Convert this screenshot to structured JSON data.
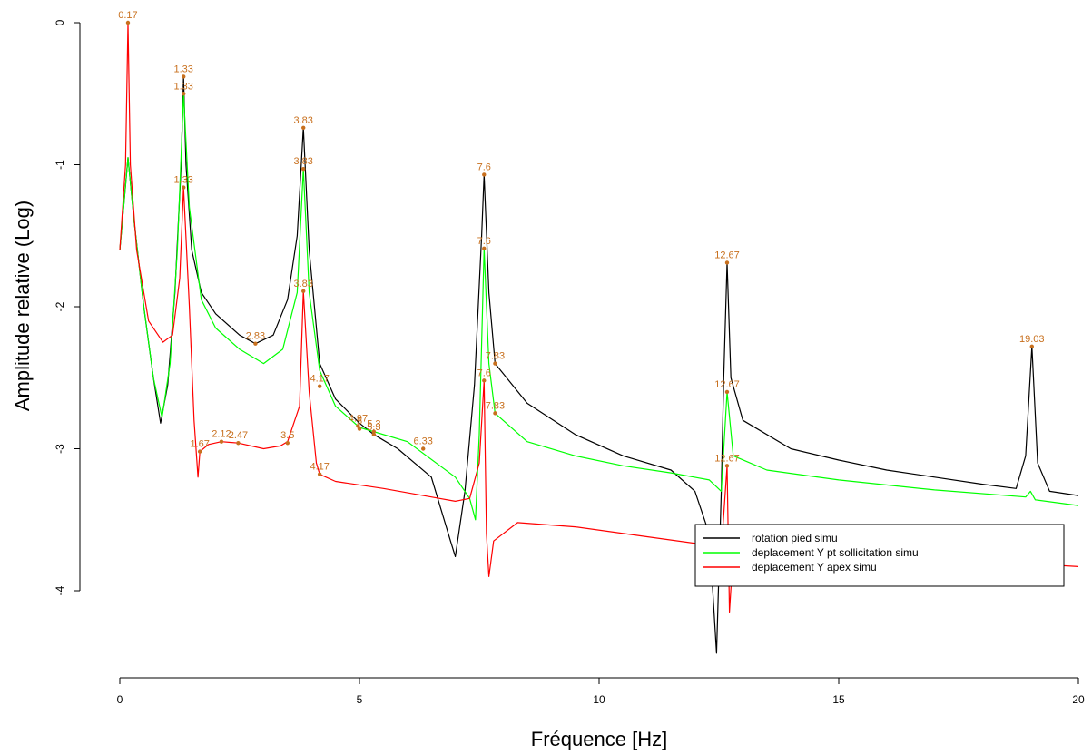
{
  "chart_data": {
    "type": "line",
    "xlabel": "Fréquence [Hz]",
    "ylabel": "Amplitude relative (Log)",
    "xlim": [
      0,
      20
    ],
    "ylim": [
      -4.5,
      0
    ],
    "x_ticks": [
      0,
      5,
      10,
      15,
      20
    ],
    "y_ticks": [
      0,
      -1,
      -2,
      -3,
      -4
    ],
    "legend": {
      "placement": "bottom-right"
    },
    "series": [
      {
        "name": "rotation pied simu",
        "color": "#000000",
        "points": [
          [
            0,
            -1.6
          ],
          [
            0.17,
            -0.95
          ],
          [
            0.3,
            -1.4
          ],
          [
            0.5,
            -2.0
          ],
          [
            0.7,
            -2.5
          ],
          [
            0.85,
            -2.82
          ],
          [
            1.0,
            -2.55
          ],
          [
            1.15,
            -1.9
          ],
          [
            1.28,
            -1.0
          ],
          [
            1.33,
            -0.38
          ],
          [
            1.38,
            -1.0
          ],
          [
            1.5,
            -1.6
          ],
          [
            1.7,
            -1.9
          ],
          [
            2.0,
            -2.05
          ],
          [
            2.5,
            -2.2
          ],
          [
            2.83,
            -2.26
          ],
          [
            3.2,
            -2.2
          ],
          [
            3.5,
            -1.95
          ],
          [
            3.7,
            -1.5
          ],
          [
            3.83,
            -0.74
          ],
          [
            3.95,
            -1.6
          ],
          [
            4.17,
            -2.4
          ],
          [
            4.5,
            -2.65
          ],
          [
            5.0,
            -2.82
          ],
          [
            5.3,
            -2.9
          ],
          [
            5.8,
            -3.0
          ],
          [
            6.5,
            -3.2
          ],
          [
            6.9,
            -3.65
          ],
          [
            7.0,
            -3.76
          ],
          [
            7.2,
            -3.3
          ],
          [
            7.4,
            -2.55
          ],
          [
            7.55,
            -1.5
          ],
          [
            7.6,
            -1.07
          ],
          [
            7.7,
            -1.9
          ],
          [
            7.83,
            -2.4
          ],
          [
            8.5,
            -2.68
          ],
          [
            9.5,
            -2.9
          ],
          [
            10.5,
            -3.05
          ],
          [
            11.5,
            -3.15
          ],
          [
            12.0,
            -3.3
          ],
          [
            12.3,
            -3.6
          ],
          [
            12.45,
            -4.44
          ],
          [
            12.55,
            -3.3
          ],
          [
            12.6,
            -2.5
          ],
          [
            12.67,
            -1.69
          ],
          [
            12.75,
            -2.5
          ],
          [
            13.0,
            -2.8
          ],
          [
            14.0,
            -3.0
          ],
          [
            15.0,
            -3.08
          ],
          [
            16.0,
            -3.15
          ],
          [
            17.0,
            -3.2
          ],
          [
            18.0,
            -3.25
          ],
          [
            18.7,
            -3.28
          ],
          [
            18.9,
            -3.05
          ],
          [
            19.03,
            -2.28
          ],
          [
            19.15,
            -3.1
          ],
          [
            19.4,
            -3.3
          ],
          [
            20.0,
            -3.33
          ]
        ]
      },
      {
        "name": "deplacement Y pt sollicitation simu",
        "color": "#00ff00",
        "points": [
          [
            0,
            -1.6
          ],
          [
            0.17,
            -0.95
          ],
          [
            0.3,
            -1.4
          ],
          [
            0.5,
            -2.0
          ],
          [
            0.7,
            -2.5
          ],
          [
            0.88,
            -2.78
          ],
          [
            1.05,
            -2.4
          ],
          [
            1.2,
            -1.6
          ],
          [
            1.33,
            -0.5
          ],
          [
            1.45,
            -1.3
          ],
          [
            1.7,
            -1.95
          ],
          [
            2.0,
            -2.15
          ],
          [
            2.5,
            -2.3
          ],
          [
            3.0,
            -2.4
          ],
          [
            3.4,
            -2.3
          ],
          [
            3.7,
            -1.9
          ],
          [
            3.83,
            -1.03
          ],
          [
            3.95,
            -1.9
          ],
          [
            4.17,
            -2.45
          ],
          [
            4.5,
            -2.7
          ],
          [
            5.0,
            -2.85
          ],
          [
            6.0,
            -2.95
          ],
          [
            6.6,
            -3.1
          ],
          [
            7.0,
            -3.2
          ],
          [
            7.3,
            -3.35
          ],
          [
            7.42,
            -3.5
          ],
          [
            7.5,
            -2.9
          ],
          [
            7.6,
            -1.59
          ],
          [
            7.7,
            -2.4
          ],
          [
            7.83,
            -2.75
          ],
          [
            8.5,
            -2.95
          ],
          [
            9.5,
            -3.05
          ],
          [
            10.5,
            -3.12
          ],
          [
            11.5,
            -3.17
          ],
          [
            12.3,
            -3.22
          ],
          [
            12.55,
            -3.3
          ],
          [
            12.67,
            -2.6
          ],
          [
            12.8,
            -3.05
          ],
          [
            13.5,
            -3.15
          ],
          [
            15.0,
            -3.22
          ],
          [
            17.0,
            -3.29
          ],
          [
            18.9,
            -3.34
          ],
          [
            19.0,
            -3.3
          ],
          [
            19.1,
            -3.36
          ],
          [
            20.0,
            -3.4
          ]
        ]
      },
      {
        "name": "deplacement Y apex simu",
        "color": "#ff0000",
        "points": [
          [
            0,
            -1.6
          ],
          [
            0.12,
            -1.0
          ],
          [
            0.17,
            0.0
          ],
          [
            0.22,
            -1.0
          ],
          [
            0.35,
            -1.6
          ],
          [
            0.6,
            -2.1
          ],
          [
            0.9,
            -2.25
          ],
          [
            1.1,
            -2.2
          ],
          [
            1.25,
            -1.8
          ],
          [
            1.33,
            -1.16
          ],
          [
            1.45,
            -2.0
          ],
          [
            1.55,
            -2.8
          ],
          [
            1.63,
            -3.2
          ],
          [
            1.67,
            -3.02
          ],
          [
            1.85,
            -2.97
          ],
          [
            2.12,
            -2.95
          ],
          [
            2.47,
            -2.96
          ],
          [
            3.0,
            -3.0
          ],
          [
            3.35,
            -2.98
          ],
          [
            3.5,
            -2.95
          ],
          [
            3.75,
            -2.7
          ],
          [
            3.83,
            -1.89
          ],
          [
            3.95,
            -2.6
          ],
          [
            4.1,
            -3.1
          ],
          [
            4.17,
            -3.18
          ],
          [
            4.5,
            -3.23
          ],
          [
            5.5,
            -3.28
          ],
          [
            6.5,
            -3.34
          ],
          [
            7.0,
            -3.37
          ],
          [
            7.3,
            -3.35
          ],
          [
            7.5,
            -3.1
          ],
          [
            7.6,
            -2.52
          ],
          [
            7.65,
            -3.6
          ],
          [
            7.7,
            -3.9
          ],
          [
            7.8,
            -3.65
          ],
          [
            8.3,
            -3.52
          ],
          [
            9.5,
            -3.55
          ],
          [
            11.0,
            -3.62
          ],
          [
            12.3,
            -3.68
          ],
          [
            12.55,
            -3.72
          ],
          [
            12.67,
            -3.12
          ],
          [
            12.72,
            -4.15
          ],
          [
            12.8,
            -3.72
          ],
          [
            15.0,
            -3.75
          ],
          [
            18.0,
            -3.79
          ],
          [
            20.0,
            -3.83
          ]
        ]
      }
    ],
    "peak_labels": [
      {
        "label": "0.17",
        "x": 0.17,
        "y": 0.0
      },
      {
        "label": "1.33",
        "x": 1.33,
        "y": -0.38
      },
      {
        "label": "1.33",
        "x": 1.33,
        "y": -0.5
      },
      {
        "label": "1.33",
        "x": 1.33,
        "y": -1.16
      },
      {
        "label": "3.83",
        "x": 3.83,
        "y": -0.74
      },
      {
        "label": "3.83",
        "x": 3.83,
        "y": -1.03
      },
      {
        "label": "3.83",
        "x": 3.83,
        "y": -1.89
      },
      {
        "label": "2.83",
        "x": 2.83,
        "y": -2.26
      },
      {
        "label": "1.67",
        "x": 1.67,
        "y": -3.02
      },
      {
        "label": "2.12",
        "x": 2.12,
        "y": -2.95
      },
      {
        "label": "2.47",
        "x": 2.47,
        "y": -2.96
      },
      {
        "label": "3.5",
        "x": 3.5,
        "y": -2.96
      },
      {
        "label": "4.17",
        "x": 4.17,
        "y": -2.56
      },
      {
        "label": "4.17",
        "x": 4.17,
        "y": -3.18
      },
      {
        "label": "4.97",
        "x": 4.97,
        "y": -2.84
      },
      {
        "label": "5",
        "x": 5.0,
        "y": -2.86
      },
      {
        "label": "5.3",
        "x": 5.3,
        "y": -2.88
      },
      {
        "label": "5.3",
        "x": 5.3,
        "y": -2.9
      },
      {
        "label": "6.33",
        "x": 6.33,
        "y": -3.0
      },
      {
        "label": "7.6",
        "x": 7.6,
        "y": -1.07
      },
      {
        "label": "7.6",
        "x": 7.6,
        "y": -1.59
      },
      {
        "label": "7.6",
        "x": 7.6,
        "y": -2.52
      },
      {
        "label": "7.83",
        "x": 7.83,
        "y": -2.4
      },
      {
        "label": "7.83",
        "x": 7.83,
        "y": -2.75
      },
      {
        "label": "12.67",
        "x": 12.67,
        "y": -1.69
      },
      {
        "label": "12.67",
        "x": 12.67,
        "y": -2.6
      },
      {
        "label": "12.67",
        "x": 12.67,
        "y": -3.12
      },
      {
        "label": "19.03",
        "x": 19.03,
        "y": -2.28
      }
    ]
  },
  "colors": {
    "peak_marker": "#c8701e"
  }
}
